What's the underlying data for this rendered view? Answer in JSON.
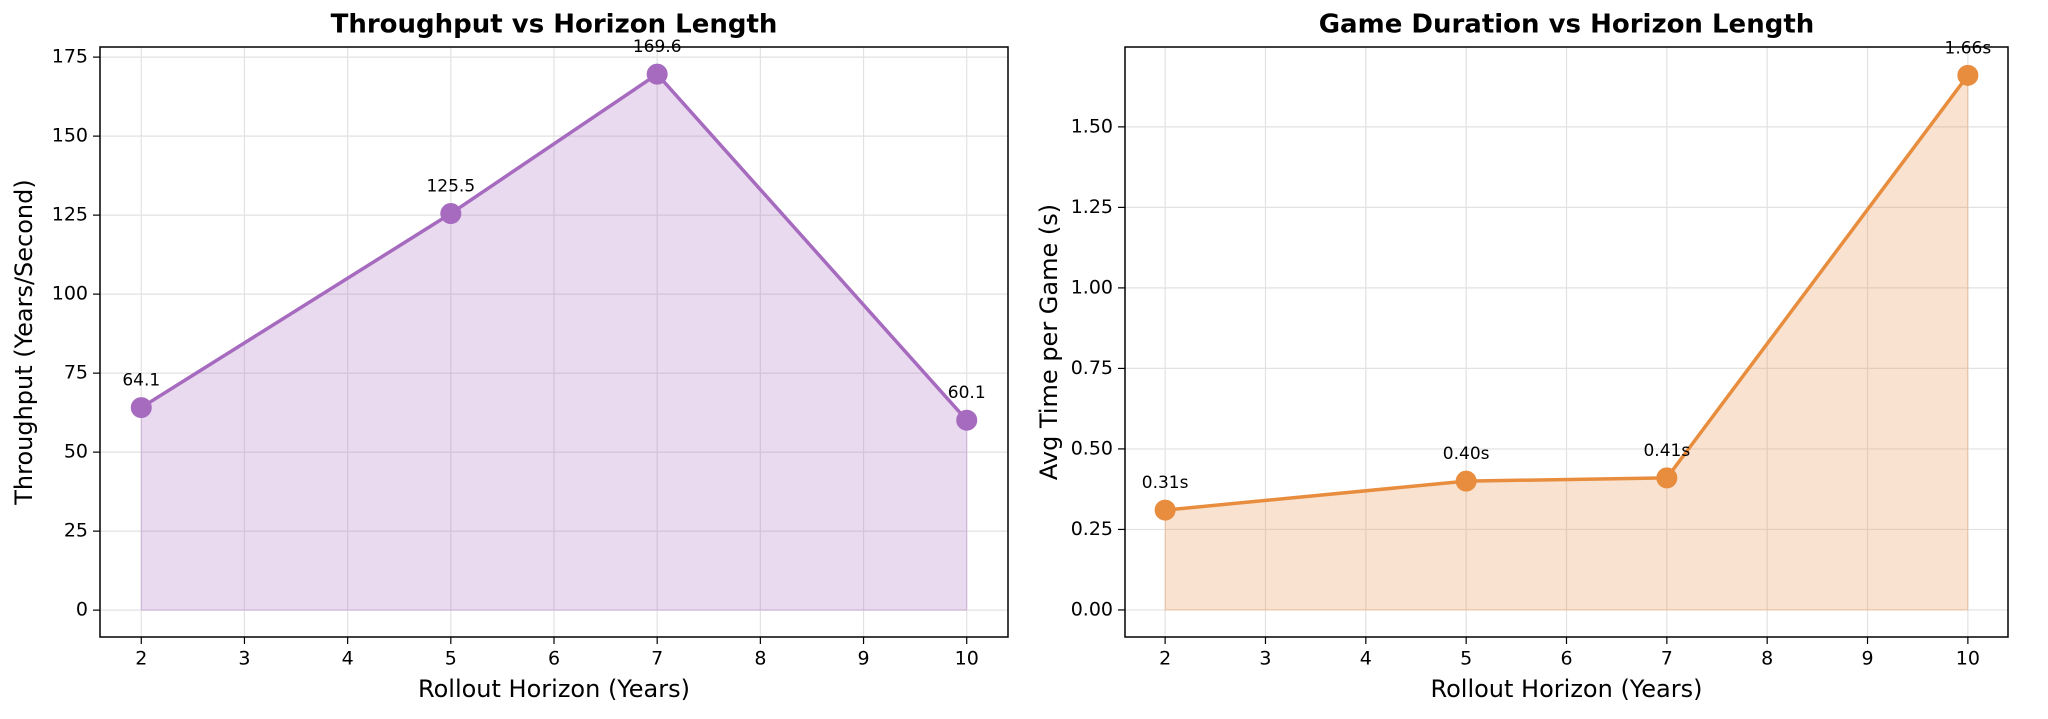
{
  "chart_data": [
    {
      "type": "line",
      "title": "Throughput vs Horizon Length",
      "xlabel": "Rollout Horizon (Years)",
      "ylabel": "Throughput (Years/Second)",
      "x": [
        2,
        5,
        7,
        10
      ],
      "values": [
        64.1,
        125.5,
        169.6,
        60.1
      ],
      "color": "#a66bbf",
      "fill": true,
      "xlim": [
        1.6,
        10.4
      ],
      "xticks": [
        2,
        3,
        4,
        5,
        6,
        7,
        8,
        9,
        10
      ],
      "ylim": [
        -8.5,
        178.2
      ],
      "yticks": [
        0,
        25,
        50,
        75,
        100,
        125,
        150,
        175
      ],
      "grid": true
    },
    {
      "type": "line",
      "title": "Game Duration vs Horizon Length",
      "xlabel": "Rollout Horizon (Years)",
      "ylabel": "Avg Time per Game (s)",
      "x": [
        2,
        5,
        7,
        10
      ],
      "values": [
        0.31,
        0.4,
        0.41,
        1.66
      ],
      "value_labels": [
        "0.31s",
        "0.40s",
        "0.41s",
        "1.66s"
      ],
      "color": "#e88d3e",
      "fill": true,
      "xlim": [
        1.6,
        10.4
      ],
      "xticks": [
        2,
        3,
        4,
        5,
        6,
        7,
        8,
        9,
        10
      ],
      "ylim": [
        -0.084,
        1.748
      ],
      "yticks": [
        {
          "value": 0,
          "label": "0.00"
        },
        {
          "value": 0.25,
          "label": "0.25"
        },
        {
          "value": 0.5,
          "label": "0.50"
        },
        {
          "value": 0.75,
          "label": "0.75"
        },
        {
          "value": 1,
          "label": "1.00"
        },
        {
          "value": 1.25,
          "label": "1.25"
        },
        {
          "value": 1.5,
          "label": "1.50"
        }
      ],
      "grid": true
    }
  ]
}
